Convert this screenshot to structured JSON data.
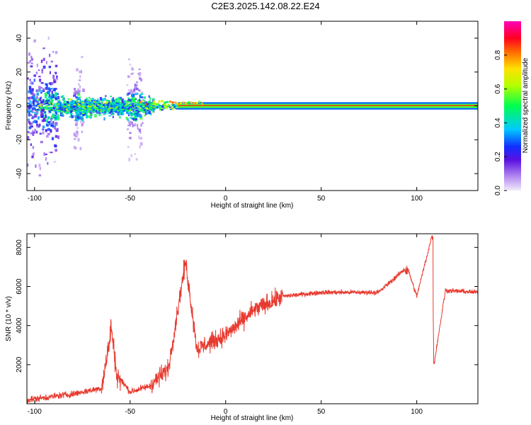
{
  "title": "C2E3.2025.142.08.22.E24",
  "chart_data": [
    {
      "type": "heatmap",
      "xlabel": "Height of straight line (km)",
      "ylabel": "Frequency (Hz)",
      "xlim": [
        -104,
        132
      ],
      "ylim": [
        -50,
        50
      ],
      "xticks": [
        -100,
        -50,
        0,
        50,
        100
      ],
      "xtick_labels": [
        "-100",
        "-50",
        "0",
        "50",
        "100"
      ],
      "yticks": [
        -40,
        -20,
        0,
        20,
        40
      ],
      "ytick_labels": [
        "-40",
        "-20",
        "0",
        "20",
        "40"
      ],
      "colorbar": {
        "label": "Normalized spectral amplitude",
        "colormap": "purple-blue-cyan-green-yellow-red-magenta",
        "range": [
          0,
          1
        ],
        "ticks": [
          0.0,
          0.2,
          0.4,
          0.6,
          0.8
        ],
        "tick_labels": [
          "0.0",
          "0.2",
          "0.4",
          "0.6",
          "0.8"
        ]
      },
      "features": {
        "carrier_line_frequency_hz": 0,
        "carrier_line_start_km": -25,
        "scatter_region_km": [
          -104,
          -40
        ],
        "broad_scatter_band_km": [
          -104,
          -88
        ]
      },
      "grid": false
    },
    {
      "type": "line",
      "xlabel": "Height of straight line (km)",
      "ylabel": "SNR (10 * v/v)",
      "xlim": [
        -104,
        132
      ],
      "ylim": [
        0,
        8700
      ],
      "xticks": [
        -100,
        -50,
        0,
        50,
        100
      ],
      "xtick_labels": [
        "-100",
        "-50",
        "0",
        "50",
        "100"
      ],
      "yticks": [
        2000,
        4000,
        6000,
        8000
      ],
      "ytick_labels": [
        "2000",
        "4000",
        "6000",
        "8000"
      ],
      "series_color": "#e8392e",
      "key_points": [
        {
          "x": -104,
          "y": 200
        },
        {
          "x": -80,
          "y": 500
        },
        {
          "x": -65,
          "y": 800
        },
        {
          "x": -61,
          "y": 3000
        },
        {
          "x": -60,
          "y": 4000
        },
        {
          "x": -57,
          "y": 1500
        },
        {
          "x": -50,
          "y": 600
        },
        {
          "x": -40,
          "y": 900
        },
        {
          "x": -30,
          "y": 1800
        },
        {
          "x": -21,
          "y": 7300
        },
        {
          "x": -15,
          "y": 2800
        },
        {
          "x": 0,
          "y": 3500
        },
        {
          "x": 15,
          "y": 4800
        },
        {
          "x": 30,
          "y": 5500
        },
        {
          "x": 50,
          "y": 5700
        },
        {
          "x": 80,
          "y": 5700
        },
        {
          "x": 95,
          "y": 7000
        },
        {
          "x": 100,
          "y": 5500
        },
        {
          "x": 108,
          "y": 8600
        },
        {
          "x": 109,
          "y": 2000
        },
        {
          "x": 115,
          "y": 5800
        },
        {
          "x": 132,
          "y": 5700
        }
      ],
      "grid": false
    }
  ]
}
